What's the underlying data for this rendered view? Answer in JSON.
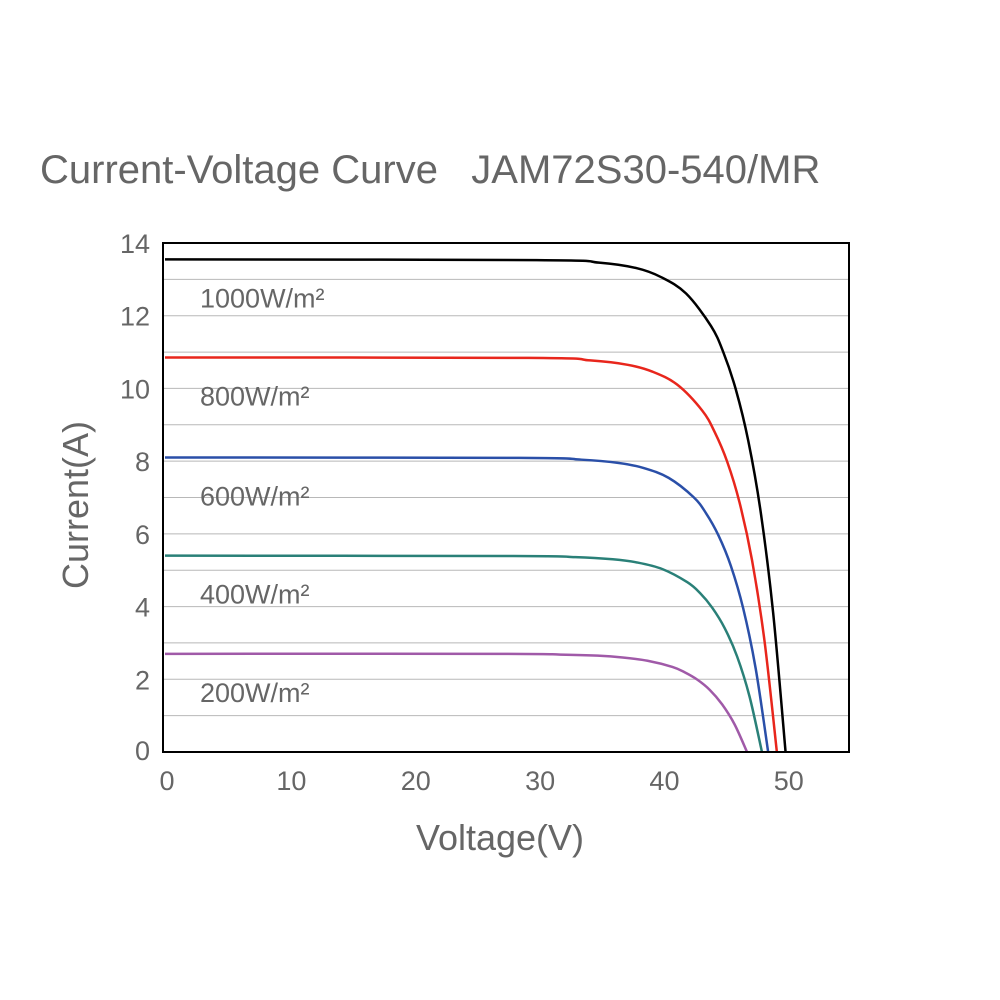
{
  "chart_data": {
    "type": "line",
    "title": "Current-Voltage Curve   JAM72S30-540/MR",
    "xlabel": "Voltage(V)",
    "ylabel": "Current(A)",
    "xlim": [
      0,
      55
    ],
    "ylim": [
      0,
      14
    ],
    "xticks": [
      0,
      10,
      20,
      30,
      40,
      50
    ],
    "yticks": [
      0,
      2,
      4,
      6,
      8,
      10,
      12,
      14
    ],
    "grid": "horizontal lines every 1 A",
    "legend": "none (inline labels)",
    "series": [
      {
        "name": "1000W/m²",
        "color": "#000000",
        "x": [
          0,
          29.9,
          34.9,
          37.9,
          39.9,
          41.9,
          43.9,
          44.9,
          45.9,
          46.9,
          47.9,
          48.9,
          49.9
        ],
        "y": [
          13.55,
          13.53,
          13.46,
          13.31,
          13.06,
          12.61,
          11.72,
          10.99,
          9.97,
          8.56,
          6.6,
          3.83,
          0
        ]
      },
      {
        "name": "800W/m²",
        "color": "#e8261c",
        "x": [
          0,
          29.2,
          34.2,
          37.2,
          39.2,
          41.2,
          43.2,
          44.2,
          45.2,
          46.2,
          47.2,
          48.2,
          49.2
        ],
        "y": [
          10.85,
          10.84,
          10.77,
          10.65,
          10.46,
          10.1,
          9.39,
          8.8,
          7.99,
          6.86,
          5.28,
          3.07,
          0
        ]
      },
      {
        "name": "600W/m²",
        "color": "#2a4fa8",
        "x": [
          0,
          28.5,
          33.5,
          36.5,
          38.5,
          40.5,
          42.5,
          43.5,
          44.5,
          45.5,
          46.5,
          47.5,
          48.5
        ],
        "y": [
          8.1,
          8.09,
          8.04,
          7.95,
          7.81,
          7.54,
          7.01,
          6.57,
          5.96,
          5.12,
          3.94,
          2.29,
          0
        ]
      },
      {
        "name": "400W/m²",
        "color": "#2a8078",
        "x": [
          0,
          28,
          33,
          36,
          38,
          40,
          42,
          43,
          44,
          45,
          46,
          47,
          48
        ],
        "y": [
          5.4,
          5.39,
          5.36,
          5.3,
          5.21,
          5.03,
          4.67,
          4.38,
          3.97,
          3.41,
          2.63,
          1.53,
          0
        ]
      },
      {
        "name": "200W/m²",
        "color": "#a05aa8",
        "x": [
          0,
          26.8,
          31.8,
          34.8,
          36.8,
          38.8,
          40.8,
          41.8,
          42.8,
          43.8,
          44.8,
          45.8,
          46.8
        ],
        "y": [
          2.7,
          2.7,
          2.68,
          2.65,
          2.6,
          2.51,
          2.34,
          2.19,
          1.99,
          1.71,
          1.31,
          0.76,
          0
        ]
      }
    ]
  }
}
